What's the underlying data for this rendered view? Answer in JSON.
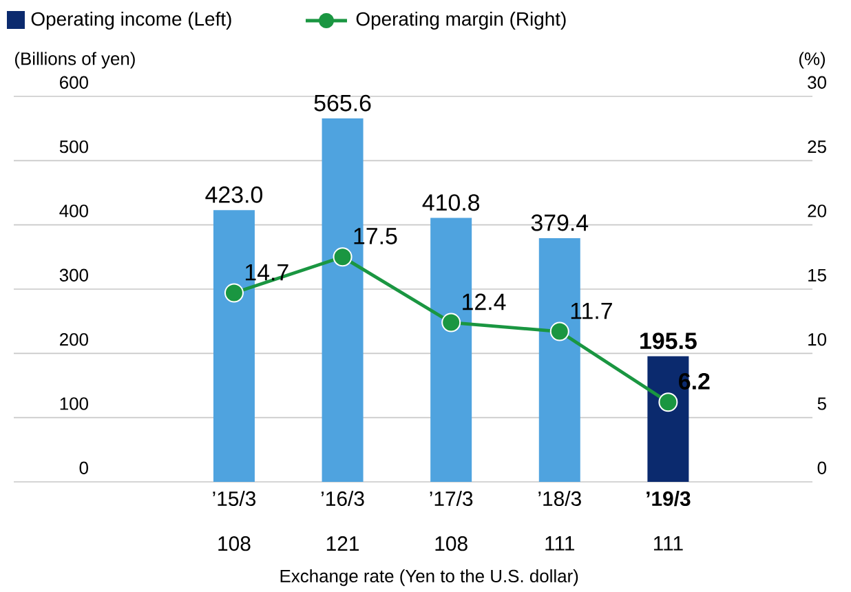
{
  "chart_data": {
    "type": "bar",
    "categories": [
      "’15/3",
      "’16/3",
      "’17/3",
      "’18/3",
      "**’19/3**"
    ],
    "ylabel": "(Billions of yen)",
    "y2label": "(%)",
    "xlabel": "Exchange rate (Yen to the U.S. dollar)",
    "annotations": [
      "108",
      "121",
      "108",
      "111",
      "111"
    ],
    "ylim": [
      0,
      600
    ],
    "yticks": [
      0,
      100,
      200,
      300,
      400,
      500,
      600
    ],
    "y2lim": [
      0,
      30
    ],
    "y2ticks": [
      0,
      5,
      10,
      15,
      20,
      25,
      30
    ],
    "grid": "y",
    "legend": "top left",
    "series": [
      {
        "name": "Operating income (Left)",
        "color": "#0b2a6e",
        "colors": [
          "#4fa3df",
          "#4fa3df",
          "#4fa3df",
          "#4fa3df",
          "#0b2a6e"
        ],
        "values": [
          423.0,
          565.6,
          410.8,
          379.4,
          195.5
        ],
        "value_labels": [
          "423.0",
          "565.6",
          "410.8",
          "379.4",
          "**195.5**"
        ]
      },
      {
        "name": "Operating margin (Right)",
        "type": "line",
        "axis": "y2",
        "marker": "circle",
        "color": "#1a9641",
        "values": [
          14.7,
          17.5,
          12.4,
          11.7,
          6.2
        ],
        "value_labels": [
          "14.7",
          "17.5",
          "12.4",
          "11.7",
          "**6.2**"
        ]
      }
    ]
  }
}
